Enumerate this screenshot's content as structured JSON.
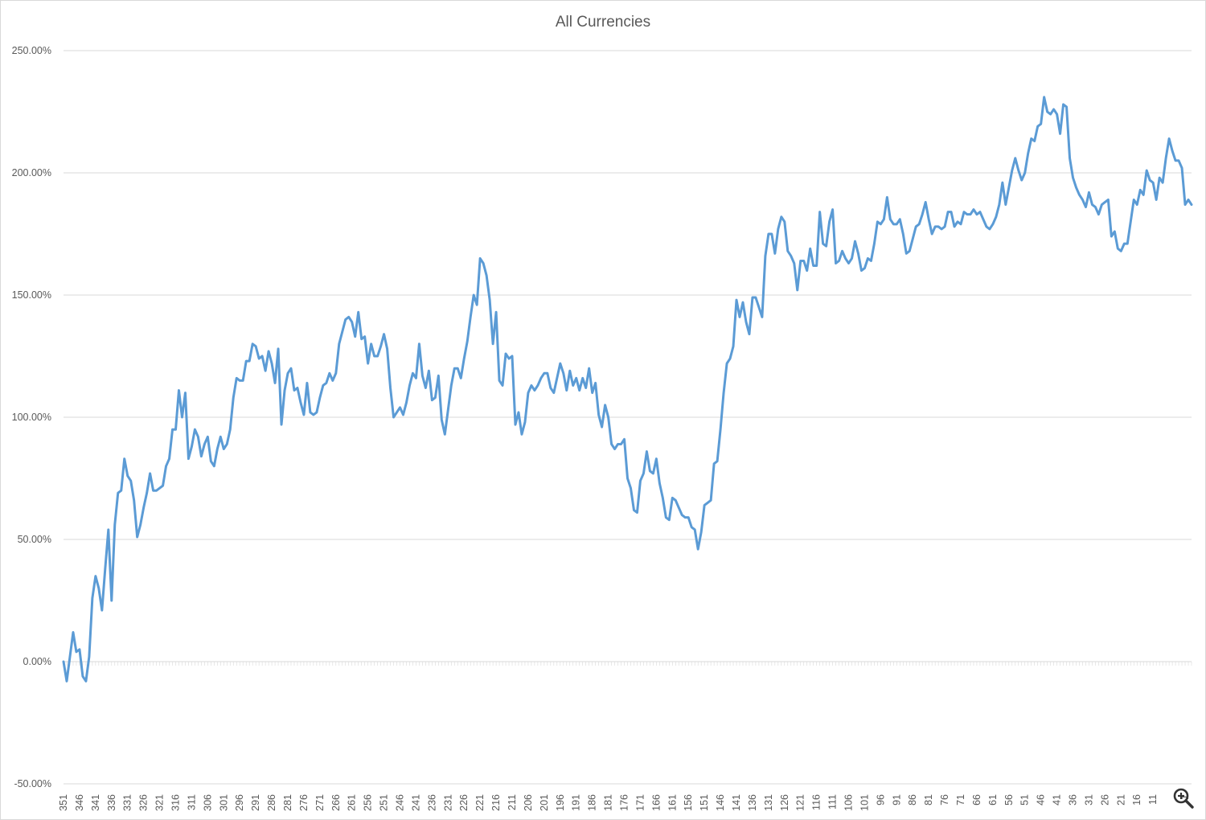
{
  "chart_data": {
    "type": "line",
    "title": "All Currencies",
    "xlabel": "",
    "ylabel": "",
    "x_start": 351,
    "x_end": 1,
    "x_descending": true,
    "x_tick_labels": [
      "351",
      "346",
      "341",
      "336",
      "331",
      "326",
      "321",
      "316",
      "311",
      "306",
      "301",
      "296",
      "291",
      "286",
      "281",
      "276",
      "271",
      "266",
      "261",
      "256",
      "251",
      "246",
      "241",
      "236",
      "231",
      "226",
      "221",
      "216",
      "211",
      "206",
      "201",
      "196",
      "191",
      "186",
      "181",
      "176",
      "171",
      "166",
      "161",
      "156",
      "151",
      "146",
      "141",
      "136",
      "131",
      "126",
      "121",
      "116",
      "111",
      "106",
      "101",
      "96",
      "91",
      "86",
      "81",
      "76",
      "71",
      "66",
      "61",
      "56",
      "51",
      "46",
      "41",
      "36",
      "31",
      "26",
      "21",
      "16",
      "11",
      "1"
    ],
    "y_tick_labels": [
      "250.00%",
      "200.00%",
      "150.00%",
      "100.00%",
      "50.00%",
      "0.00%",
      "-50.00%"
    ],
    "ylim": [
      -50,
      250
    ],
    "y_unit": "%",
    "grid": true,
    "line_color": "#5b9bd5",
    "series": [
      {
        "values": [
          0,
          -8,
          2,
          12,
          4,
          5,
          -6,
          -8,
          2,
          26,
          35,
          30,
          21,
          38,
          54,
          25,
          56,
          69,
          70,
          83,
          76,
          74,
          66,
          51,
          56,
          63,
          69,
          77,
          70,
          70,
          71,
          72,
          80,
          83,
          95,
          95,
          111,
          100,
          110,
          83,
          88,
          95,
          92,
          84,
          89,
          92,
          82,
          80,
          87,
          92,
          87,
          89,
          95,
          108,
          116,
          115,
          115,
          123,
          123,
          130,
          129,
          124,
          125,
          119,
          127,
          122,
          114,
          128,
          97,
          111,
          118,
          120,
          111,
          112,
          106,
          101,
          114,
          102,
          101,
          102,
          108,
          113,
          114,
          118,
          115,
          118,
          130,
          135,
          140,
          141,
          139,
          133,
          143,
          132,
          133,
          122,
          130,
          125,
          125,
          129,
          134,
          128,
          112,
          100,
          102,
          104,
          101,
          106,
          113,
          118,
          116,
          130,
          117,
          112,
          119,
          107,
          108,
          117,
          99,
          93,
          103,
          113,
          120,
          120,
          116,
          124,
          131,
          141,
          150,
          146,
          165,
          163,
          158,
          148,
          130,
          143,
          115,
          113,
          126,
          124,
          125,
          97,
          102,
          93,
          98,
          110,
          113,
          111,
          113,
          116,
          118,
          118,
          112,
          110,
          116,
          122,
          118,
          111,
          119,
          113,
          116,
          111,
          116,
          112,
          120,
          110,
          114,
          101,
          96,
          105,
          100,
          89,
          87,
          89,
          89,
          91,
          75,
          71,
          62,
          61,
          74,
          77,
          86,
          78,
          77,
          83,
          73,
          67,
          59,
          58,
          67,
          66,
          63,
          60,
          59,
          59,
          55,
          54,
          46,
          53,
          64,
          65,
          66,
          81,
          82,
          95,
          110,
          122,
          124,
          129,
          148,
          141,
          147,
          139,
          134,
          149,
          149,
          145,
          141,
          166,
          175,
          175,
          167,
          177,
          182,
          180,
          168,
          166,
          163,
          152,
          164,
          164,
          160,
          169,
          162,
          162,
          184,
          171,
          170,
          180,
          185,
          163,
          164,
          168,
          165,
          163,
          165,
          172,
          167,
          160,
          161,
          165,
          164,
          171,
          180,
          179,
          181,
          190,
          181,
          179,
          179,
          181,
          175,
          167,
          168,
          173,
          178,
          179,
          183,
          188,
          181,
          175,
          178,
          178,
          177,
          178,
          184,
          184,
          178,
          180,
          179,
          184,
          183,
          183,
          185,
          183,
          184,
          181,
          178,
          177,
          179,
          182,
          187,
          196,
          187,
          194,
          201,
          206,
          201,
          197,
          200,
          208,
          214,
          213,
          219,
          220,
          231,
          225,
          224,
          226,
          224,
          216,
          228,
          227,
          206,
          198,
          194,
          191,
          189,
          186,
          192,
          187,
          186,
          183,
          187,
          188,
          189,
          174,
          176,
          169,
          168,
          171,
          171,
          180,
          189,
          187,
          193,
          191,
          201,
          197,
          196,
          189,
          198,
          196,
          206,
          214,
          209,
          205,
          205,
          202,
          187,
          189,
          187
        ]
      }
    ]
  }
}
